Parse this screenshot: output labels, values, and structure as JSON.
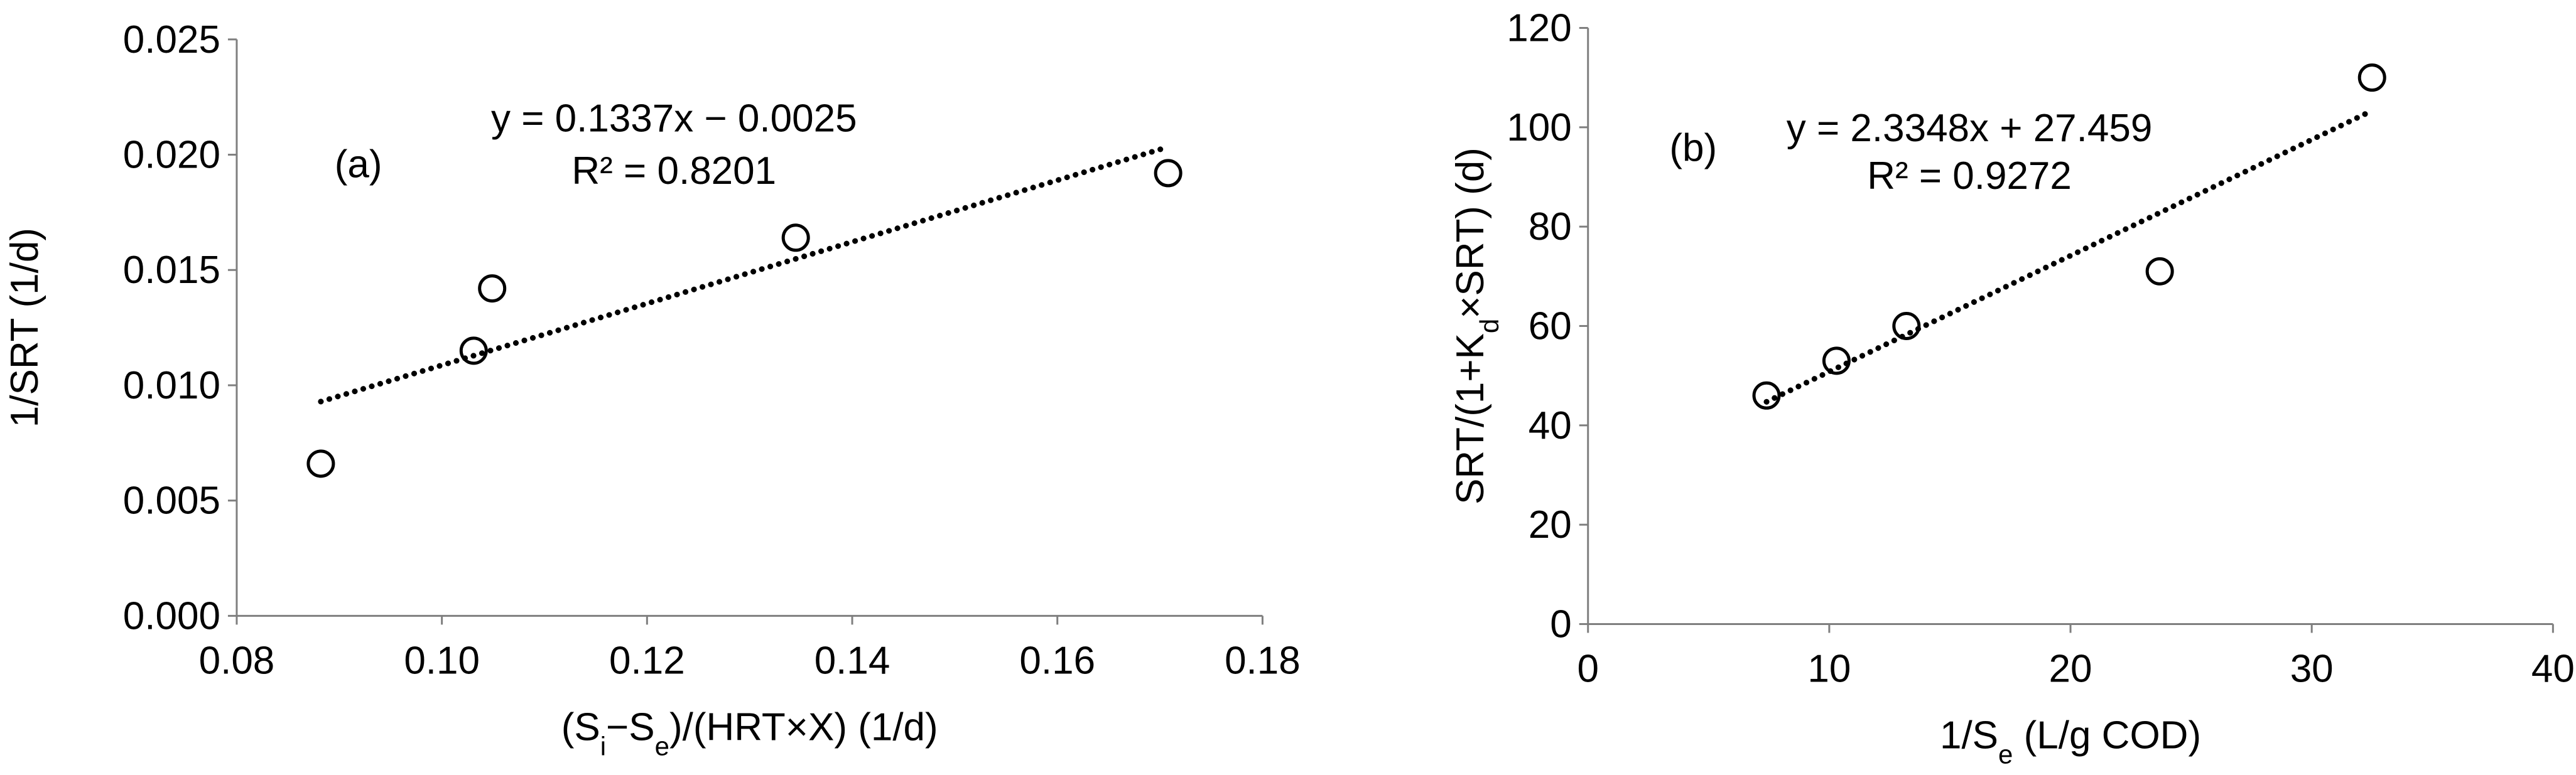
{
  "chart_data": [
    {
      "type": "scatter",
      "panel_label": "(a)",
      "ylabel": "1/SRT (1/d)",
      "xlabel": {
        "parts": [
          "(S",
          "i",
          "−S",
          "e",
          ")/(HRT×X) (1/d)"
        ]
      },
      "xlim": [
        0.08,
        0.18
      ],
      "ylim": [
        0.0,
        0.025
      ],
      "xticks": [
        "0.08",
        "0.10",
        "0.12",
        "0.14",
        "0.16",
        "0.18"
      ],
      "yticks": [
        "0.000",
        "0.005",
        "0.010",
        "0.015",
        "0.020",
        "0.025"
      ],
      "points": {
        "x": [
          0.0882,
          0.1031,
          0.1049,
          0.1345,
          0.1708
        ],
        "y": [
          0.0066,
          0.0115,
          0.0142,
          0.0164,
          0.0192
        ]
      },
      "trendline": {
        "slope": 0.1337,
        "intercept": -0.0025,
        "x_range": [
          0.0882,
          0.1708
        ],
        "style": "dotted"
      },
      "equation": "y = 0.1337x − 0.0025",
      "r2": "R² = 0.8201",
      "grid": false,
      "legend": "none"
    },
    {
      "type": "scatter",
      "panel_label": "(b)",
      "ylabel": {
        "parts": [
          "SRT/(1+K",
          "d",
          "×SRT) (d)"
        ]
      },
      "xlabel": {
        "parts": [
          "1/S",
          "e",
          " (L/g COD)"
        ]
      },
      "xlim": [
        0,
        40
      ],
      "ylim": [
        0,
        120
      ],
      "xticks": [
        "0",
        "10",
        "20",
        "30",
        "40"
      ],
      "yticks": [
        "0",
        "20",
        "40",
        "60",
        "80",
        "100",
        "120"
      ],
      "points": {
        "x": [
          7.4,
          10.3,
          13.2,
          23.7,
          32.5
        ],
        "y": [
          46,
          53,
          60,
          71,
          110
        ]
      },
      "trendline": {
        "slope": 2.3348,
        "intercept": 27.459,
        "x_range": [
          7.4,
          32.5
        ],
        "style": "dotted"
      },
      "equation": "y = 2.3348x + 27.459",
      "r2": "R² = 0.9272",
      "grid": false,
      "legend": "none"
    }
  ]
}
